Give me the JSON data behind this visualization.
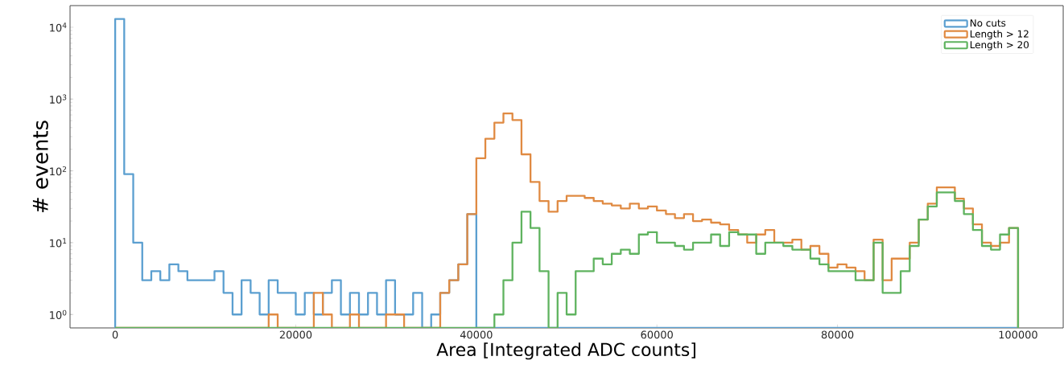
{
  "chart_data": {
    "type": "histogram",
    "xlabel": "Area [Integrated ADC counts]",
    "ylabel": "# events",
    "log": "y",
    "legend": "top right",
    "xlim": [
      -5000,
      105000
    ],
    "ylim": [
      0.65,
      20000
    ],
    "xticks": [
      0,
      20000,
      40000,
      60000,
      80000,
      100000
    ],
    "yticks": [
      {
        "value": 1,
        "label": "10$^{0}$"
      },
      {
        "value": 10,
        "label": "10$^{1}$"
      },
      {
        "value": 100,
        "label": "10$^{2}$"
      },
      {
        "value": 1000,
        "label": "10$^{3}$"
      },
      {
        "value": 10000,
        "label": "10$^{4}$"
      }
    ],
    "bins": [
      0,
      1000,
      2000,
      3000,
      4000,
      5000,
      6000,
      7000,
      8000,
      9000,
      10000,
      11000,
      12000,
      13000,
      14000,
      15000,
      16000,
      17000,
      18000,
      19000,
      20000,
      21000,
      22000,
      23000,
      24000,
      25000,
      26000,
      27000,
      28000,
      29000,
      30000,
      31000,
      32000,
      33000,
      34000,
      35000,
      36000,
      37000,
      38000,
      39000,
      40000,
      41000,
      42000,
      43000,
      44000,
      45000,
      46000,
      47000,
      48000,
      49000,
      50000,
      51000,
      52000,
      53000,
      54000,
      55000,
      56000,
      57000,
      58000,
      59000,
      60000,
      61000,
      62000,
      63000,
      64000,
      65000,
      66000,
      67000,
      68000,
      69000,
      70000,
      71000,
      72000,
      73000,
      74000,
      75000,
      76000,
      77000,
      78000,
      79000,
      80000,
      81000,
      82000,
      83000,
      84000,
      85000,
      86000,
      87000,
      88000,
      89000,
      90000,
      91000,
      92000,
      93000,
      94000,
      95000,
      96000,
      97000,
      98000,
      99000,
      100000
    ],
    "series": [
      {
        "name": "No cuts",
        "color": "#5b9fd0",
        "values": [
          13000,
          90,
          10,
          3,
          4,
          3,
          5,
          4,
          3,
          3,
          3,
          4,
          2,
          1,
          3,
          2,
          1,
          3,
          2,
          2,
          1,
          2,
          1,
          2,
          3,
          1,
          2,
          1,
          2,
          1,
          3,
          1,
          1,
          2,
          null,
          1,
          2,
          3,
          5,
          25,
          null,
          null,
          null,
          null,
          null,
          null,
          null,
          null,
          null,
          null,
          null,
          null,
          null,
          null,
          null,
          null,
          null,
          null,
          null,
          null,
          null,
          null,
          null,
          null,
          null,
          null,
          null,
          null,
          null,
          null,
          null,
          null,
          null,
          null,
          null,
          null,
          null,
          null,
          null,
          null,
          null,
          null,
          null,
          null,
          null,
          null,
          null,
          null,
          null,
          null,
          null,
          null,
          null,
          null,
          null,
          null,
          null,
          null,
          null,
          null
        ]
      },
      {
        "name": "Length > 12",
        "color": "#e08a42",
        "values": [
          null,
          null,
          null,
          null,
          null,
          null,
          null,
          null,
          null,
          null,
          null,
          null,
          null,
          null,
          null,
          null,
          null,
          1,
          null,
          null,
          null,
          null,
          2,
          1,
          null,
          null,
          1,
          null,
          null,
          null,
          1,
          1,
          null,
          null,
          null,
          null,
          2,
          3,
          5,
          25,
          150,
          280,
          470,
          630,
          510,
          170,
          70,
          38,
          27,
          38,
          45,
          45,
          42,
          38,
          35,
          33,
          30,
          35,
          30,
          32,
          28,
          25,
          22,
          25,
          20,
          21,
          19,
          18,
          15,
          13,
          10,
          13,
          15,
          10,
          10,
          11,
          8,
          9,
          7,
          4.5,
          5,
          4.5,
          4,
          3,
          11,
          3,
          6,
          6,
          10,
          21,
          35,
          59,
          59,
          41,
          30,
          18,
          10,
          9,
          10,
          16
        ]
      },
      {
        "name": "Length > 20",
        "color": "#5fb35f",
        "values": [
          null,
          null,
          null,
          null,
          null,
          null,
          null,
          null,
          null,
          null,
          null,
          null,
          null,
          null,
          null,
          null,
          null,
          null,
          null,
          null,
          null,
          null,
          null,
          null,
          null,
          null,
          null,
          null,
          null,
          null,
          null,
          null,
          null,
          null,
          null,
          null,
          null,
          null,
          null,
          null,
          null,
          null,
          1,
          3,
          10,
          27,
          16,
          4,
          null,
          2,
          1,
          4,
          4,
          6,
          5,
          7,
          8,
          7,
          13,
          14,
          10,
          10,
          9,
          8,
          10,
          10,
          13,
          9,
          14,
          13,
          13,
          7,
          10,
          10,
          9,
          8,
          8,
          6,
          5,
          4,
          4,
          4,
          3,
          3,
          10,
          2,
          2,
          4,
          9,
          21,
          32,
          50,
          50,
          38,
          25,
          15,
          9,
          8,
          13,
          16
        ]
      }
    ]
  }
}
